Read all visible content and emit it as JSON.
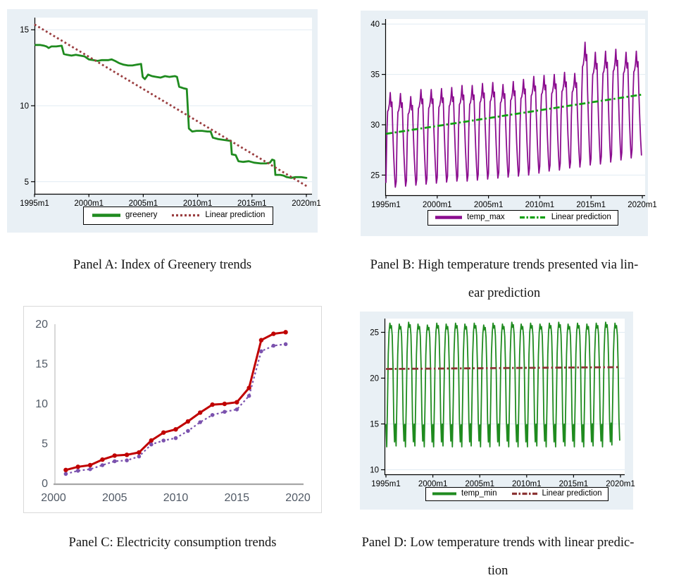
{
  "page": {
    "page_background": "#ffffff",
    "stata_panel_background": "#e9f0f5",
    "stata_gridline_color": "#e1ebf3"
  },
  "captions": {
    "a": {
      "lines": [
        "Panel A: Index of Greenery trends"
      ]
    },
    "b": {
      "lines": [
        "Panel B: High temperature trends presented via lin-",
        "ear prediction"
      ]
    },
    "c": {
      "lines": [
        "Panel C: Electricity consumption trends"
      ]
    },
    "d": {
      "lines": [
        "Panel D: Low temperature trends with linear predic-",
        "tion"
      ]
    }
  },
  "chart_data": [
    {
      "id": "a",
      "type": "line",
      "panel_label": "Panel A",
      "x_tick_labels": [
        "1995m1",
        "2000m1",
        "2005m1",
        "2010m1",
        "2015m1",
        "2020m1"
      ],
      "x_tick_values": [
        1995,
        2000,
        2005,
        2010,
        2015,
        2020
      ],
      "y_ticks": [
        5,
        10,
        15
      ],
      "x_range": [
        1995,
        2020.5
      ],
      "y_range": [
        4.2,
        15.8
      ],
      "grid": true,
      "legend_position": "bottom",
      "series": [
        {
          "name": "greenery",
          "color": "#1f8b1f",
          "style": "solid",
          "width": 2.8,
          "points": [
            [
              1995.1,
              14.0
            ],
            [
              1995.5,
              14.0
            ],
            [
              1995.9,
              13.95
            ],
            [
              1996.1,
              13.9
            ],
            [
              1996.3,
              13.8
            ],
            [
              1996.55,
              13.9
            ],
            [
              1997.0,
              13.9
            ],
            [
              1997.5,
              13.95
            ],
            [
              1997.7,
              13.4
            ],
            [
              1998.0,
              13.35
            ],
            [
              1998.4,
              13.3
            ],
            [
              1998.8,
              13.35
            ],
            [
              1999.2,
              13.3
            ],
            [
              1999.6,
              13.25
            ],
            [
              2000.0,
              13.05
            ],
            [
              2000.4,
              13.0
            ],
            [
              2000.8,
              12.95
            ],
            [
              2001.2,
              13.0
            ],
            [
              2001.8,
              13.0
            ],
            [
              2002.1,
              13.05
            ],
            [
              2002.4,
              12.95
            ],
            [
              2002.8,
              12.8
            ],
            [
              2003.2,
              12.7
            ],
            [
              2003.6,
              12.65
            ],
            [
              2004.0,
              12.65
            ],
            [
              2004.4,
              12.7
            ],
            [
              2004.8,
              12.75
            ],
            [
              2004.95,
              11.9
            ],
            [
              2005.15,
              11.75
            ],
            [
              2005.45,
              12.05
            ],
            [
              2005.8,
              11.95
            ],
            [
              2006.2,
              11.9
            ],
            [
              2006.6,
              11.85
            ],
            [
              2007.0,
              11.95
            ],
            [
              2007.4,
              11.9
            ],
            [
              2007.9,
              11.95
            ],
            [
              2008.1,
              11.9
            ],
            [
              2008.3,
              11.25
            ],
            [
              2008.7,
              11.15
            ],
            [
              2009.0,
              11.1
            ],
            [
              2009.05,
              10.5
            ],
            [
              2009.2,
              8.5
            ],
            [
              2009.5,
              8.3
            ],
            [
              2009.9,
              8.35
            ],
            [
              2010.4,
              8.35
            ],
            [
              2010.9,
              8.3
            ],
            [
              2011.2,
              8.3
            ],
            [
              2011.4,
              7.9
            ],
            [
              2011.9,
              7.8
            ],
            [
              2012.4,
              7.75
            ],
            [
              2012.9,
              7.7
            ],
            [
              2013.05,
              7.7
            ],
            [
              2013.15,
              6.8
            ],
            [
              2013.5,
              6.75
            ],
            [
              2013.75,
              6.35
            ],
            [
              2014.2,
              6.3
            ],
            [
              2014.7,
              6.35
            ],
            [
              2015.2,
              6.25
            ],
            [
              2015.8,
              6.2
            ],
            [
              2016.3,
              6.2
            ],
            [
              2016.65,
              6.25
            ],
            [
              2016.85,
              6.45
            ],
            [
              2017.05,
              6.4
            ],
            [
              2017.15,
              5.45
            ],
            [
              2017.6,
              5.45
            ],
            [
              2017.9,
              5.4
            ],
            [
              2018.2,
              5.3
            ],
            [
              2018.6,
              5.25
            ],
            [
              2019.0,
              5.3
            ],
            [
              2019.5,
              5.3
            ],
            [
              2020.0,
              5.25
            ]
          ]
        },
        {
          "name": "Linear prediction",
          "color": "#9a3e40",
          "style": "dotted",
          "width": 2.8,
          "points": [
            [
              1995.0,
              15.35
            ],
            [
              2020.1,
              4.68
            ]
          ]
        }
      ]
    },
    {
      "id": "b",
      "type": "seasonal-line",
      "panel_label": "Panel B",
      "x_tick_labels": [
        "1995m1",
        "2000m1",
        "2005m1",
        "2010m1",
        "2015m1",
        "2020m1"
      ],
      "x_tick_values": [
        1995,
        2000,
        2005,
        2010,
        2015,
        2020
      ],
      "y_ticks": [
        25,
        30,
        35,
        40
      ],
      "x_range": [
        1995,
        2020.4
      ],
      "y_range": [
        23.0,
        40.5
      ],
      "grid": true,
      "legend_position": "bottom",
      "seasonal": {
        "name": "temp_max",
        "color": "#8b0d8f",
        "width": 1.8,
        "start_year": 1995,
        "monthly_shape": [
          0.05,
          0.55,
          0.8,
          0.82,
          0.88,
          1.0,
          0.85,
          0.9,
          0.6,
          0.35,
          0.15,
          0.0
        ],
        "year_min": [
          23.8,
          23.9,
          24.0,
          24.1,
          24.2,
          24.3,
          24.4,
          24.4,
          24.5,
          24.6,
          24.7,
          24.8,
          24.9,
          25.0,
          25.2,
          25.4,
          25.5,
          25.7,
          25.8,
          26.0,
          26.1,
          26.3,
          26.5,
          26.7,
          27.0
        ],
        "year_max": [
          33.2,
          33.1,
          32.8,
          33.5,
          33.5,
          33.6,
          33.7,
          33.9,
          33.9,
          34.1,
          34.2,
          34.0,
          34.3,
          34.5,
          34.8,
          34.9,
          35.0,
          35.2,
          35.1,
          38.2,
          37.2,
          37.3,
          37.5,
          37.2,
          37.3
        ]
      },
      "trend": {
        "name": "Linear prediction",
        "color": "#13a013",
        "style": "dashdot",
        "width": 2.8,
        "points": [
          [
            1995.0,
            29.1
          ],
          [
            2020.0,
            33.0
          ]
        ]
      }
    },
    {
      "id": "c",
      "type": "line",
      "panel_label": "Panel C",
      "x_tick_labels": [
        "2000",
        "2005",
        "2010",
        "2015",
        "2020"
      ],
      "x_tick_values": [
        2000,
        2005,
        2010,
        2015,
        2020
      ],
      "y_ticks": [
        0,
        5,
        10,
        15,
        20
      ],
      "x_range": [
        2000,
        2021
      ],
      "y_range": [
        0,
        20
      ],
      "grid": false,
      "legend_position": "none",
      "years": [
        2001,
        2002,
        2003,
        2004,
        2005,
        2006,
        2007,
        2008,
        2009,
        2010,
        2011,
        2012,
        2013,
        2014,
        2015,
        2016,
        2017,
        2018,
        2019
      ],
      "series": [
        {
          "name": "series_red",
          "color": "#c00000",
          "style": "solid",
          "width": 3,
          "marker": 3.2,
          "values": [
            1.7,
            2.1,
            2.3,
            3.0,
            3.5,
            3.6,
            3.9,
            5.4,
            6.4,
            6.8,
            7.8,
            8.9,
            9.9,
            10.0,
            10.2,
            12.0,
            18.0,
            18.8,
            19.0
          ]
        },
        {
          "name": "series_purple_dotted",
          "color": "#7b52ae",
          "style": "dotted",
          "width": 2.2,
          "marker": 2.8,
          "values": [
            1.2,
            1.6,
            1.8,
            2.3,
            2.8,
            2.9,
            3.4,
            4.9,
            5.4,
            5.7,
            6.6,
            7.7,
            8.6,
            9.0,
            9.3,
            11.0,
            16.6,
            17.3,
            17.5
          ]
        }
      ]
    },
    {
      "id": "d",
      "type": "seasonal-line",
      "panel_label": "Panel D",
      "x_tick_labels": [
        "1995m1",
        "2000m1",
        "2005m1",
        "2010m1",
        "2015m1",
        "2020m1"
      ],
      "x_tick_values": [
        1995,
        2000,
        2005,
        2010,
        2015,
        2020
      ],
      "y_ticks": [
        10,
        15,
        20,
        25
      ],
      "x_range": [
        1995,
        2020.3
      ],
      "y_range": [
        9.5,
        26.5
      ],
      "grid": true,
      "legend_position": "bottom",
      "seasonal": {
        "name": "temp_min",
        "color": "#1f8b1f",
        "width": 1.8,
        "start_year": 1995,
        "monthly_shape": [
          0.18,
          0.0,
          0.35,
          0.75,
          0.93,
          1.0,
          0.96,
          0.98,
          0.9,
          0.65,
          0.22,
          0.04
        ],
        "year_min": [
          12.5,
          12.6,
          12.5,
          12.6,
          12.5,
          12.5,
          12.6,
          12.5,
          12.5,
          12.6,
          12.5,
          12.5,
          12.6,
          12.5,
          12.5,
          12.5,
          12.6,
          12.5,
          12.5,
          12.6,
          12.5,
          12.5,
          12.6,
          12.5,
          12.7
        ],
        "year_max": [
          26.0,
          25.9,
          26.1,
          25.9,
          25.8,
          26.0,
          25.9,
          26.0,
          25.9,
          26.0,
          25.8,
          26.0,
          25.9,
          26.1,
          25.9,
          26.0,
          25.9,
          26.0,
          26.1,
          25.9,
          26.0,
          25.9,
          26.0,
          26.1,
          26.0
        ]
      },
      "trend": {
        "name": "Linear prediction",
        "color": "#8b3434",
        "style": "dashdot",
        "width": 2.8,
        "points": [
          [
            1995.0,
            21.0
          ],
          [
            2020.0,
            21.2
          ]
        ]
      }
    }
  ]
}
